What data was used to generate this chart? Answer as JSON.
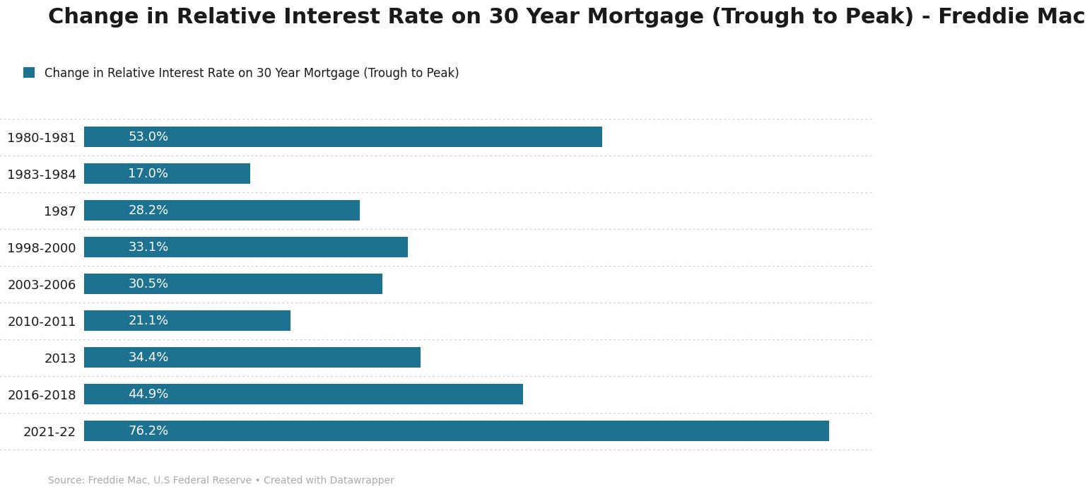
{
  "title": "Change in Relative Interest Rate on 30 Year Mortgage (Trough to Peak) - Freddie Mac",
  "legend_label": "Change in Relative Interest Rate on 30 Year Mortgage (Trough to Peak)",
  "categories": [
    "1980-1981",
    "1983-1984",
    "1987",
    "1998-2000",
    "2003-2006",
    "2010-2011",
    "2013",
    "2016-2018",
    "2021-22"
  ],
  "values": [
    53.0,
    17.0,
    28.2,
    33.1,
    30.5,
    21.1,
    34.4,
    44.9,
    76.2
  ],
  "bar_color": "#1d7191",
  "label_color": "#ffffff",
  "title_color": "#1a1a1a",
  "background_color": "#ffffff",
  "source_text": "Source: Freddie Mac, U.S Federal Reserve • Created with Datawrapper",
  "source_color": "#aaaaaa",
  "xlim": [
    0,
    80.5
  ],
  "title_fontsize": 22,
  "label_fontsize": 13,
  "tick_fontsize": 13,
  "legend_fontsize": 12,
  "source_fontsize": 10,
  "bar_height": 0.55,
  "separator_color": "#cccccc",
  "separator_style": "dotted"
}
